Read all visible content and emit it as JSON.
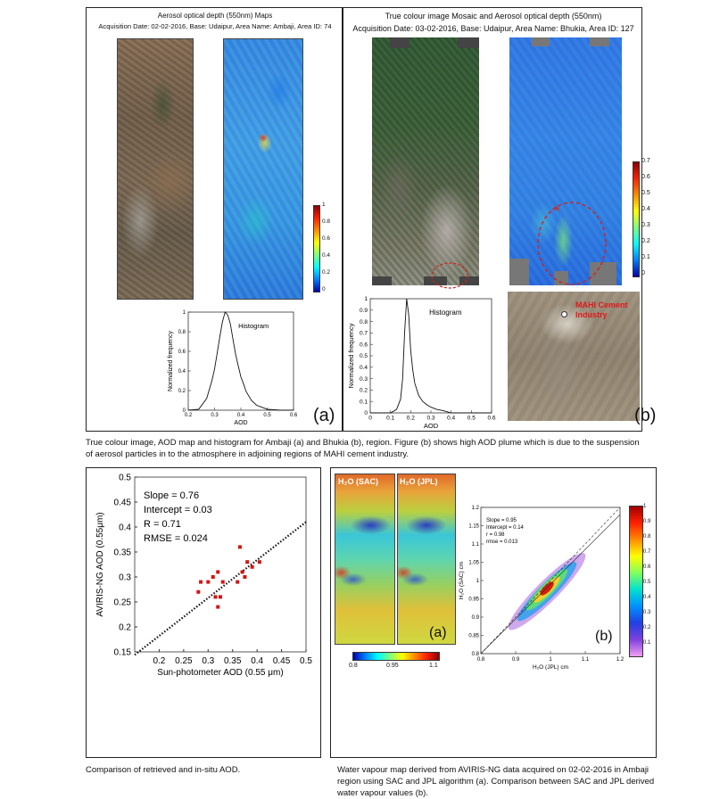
{
  "panel_a": {
    "title": "Aerosol optical depth (550nm) Maps",
    "subtitle": "Acquisition Date: 02-02-2016, Base: Udaipur, Area Name: Ambaji, Area ID: 74",
    "colorbar_ticks": [
      "1",
      "0.8",
      "0.6",
      "0.4",
      "0.2",
      "0"
    ],
    "letter": "(a)"
  },
  "panel_b": {
    "title": "True colour image Mosaic and Aerosol optical depth (550nm)",
    "subtitle": "Acquisition Date: 03-02-2016, Base: Udaipur, Area Name: Bhukia, Area ID: 127",
    "colorbar_ticks": [
      "0.7",
      "0.6",
      "0.5",
      "0.4",
      "0.3",
      "0.2",
      "0.1",
      "0"
    ],
    "inset_label": "MAHI Cement\nIndustry",
    "letter": "(b)"
  },
  "top_caption": "True colour image, AOD map and histogram for Ambaji (a) and Bhukia (b), region. Figure (b) shows high AOD plume which is due to the suspension of aerosol particles in to the atmosphere in adjoining regions of  MAHI cement industry.",
  "scatter_caption": "Comparison of retrieved and in-situ AOD.",
  "water_caption": "Water vapour map derived from AVIRIS-NG data acquired on  02-02-2016 in Ambaji region using SAC and JPL algorithm (a).  Comparison between SAC and JPL derived water vapour values (b).",
  "water_panel": {
    "strip_labels": [
      "H₂O (SAC)",
      "H₂O (JPL)"
    ],
    "colorbar_ticks": [
      "0.8",
      "0.95",
      "1.1"
    ],
    "right_colorbar_ticks": [
      "1",
      "0.9",
      "0.8",
      "0.7",
      "0.6",
      "0.5",
      "0.4",
      "0.3",
      "0.2",
      "0.1"
    ],
    "letter_a": "(a)",
    "letter_b": "(b)"
  },
  "chart_data": [
    {
      "id": "hist_ambaji",
      "type": "line",
      "title": "Histogram",
      "xlabel": "AOD",
      "ylabel": "Normalized frequency",
      "xlim": [
        0.2,
        0.6
      ],
      "ylim": [
        0,
        1
      ],
      "xticks": [
        "0.2",
        "0.3",
        "0.4",
        "0.5",
        "0.6"
      ],
      "yticks": [
        "0",
        "0.2",
        "0.4",
        "0.6",
        "0.8",
        "1"
      ],
      "x": [
        0.2,
        0.24,
        0.27,
        0.29,
        0.3,
        0.31,
        0.32,
        0.33,
        0.34,
        0.35,
        0.36,
        0.37,
        0.38,
        0.39,
        0.4,
        0.41,
        0.42,
        0.44,
        0.46,
        0.48,
        0.5,
        0.55,
        0.6
      ],
      "y": [
        0.0,
        0.01,
        0.12,
        0.3,
        0.42,
        0.58,
        0.75,
        0.9,
        1.0,
        0.97,
        0.88,
        0.72,
        0.57,
        0.45,
        0.34,
        0.27,
        0.19,
        0.1,
        0.05,
        0.03,
        0.01,
        0.0,
        0.0
      ]
    },
    {
      "id": "hist_bhukia",
      "type": "line",
      "title": "Histogram",
      "xlabel": "AOD",
      "ylabel": "Normalized frequency",
      "xlim": [
        0,
        0.6
      ],
      "ylim": [
        0,
        1
      ],
      "xticks": [
        "0",
        "0.1",
        "0.2",
        "0.3",
        "0.4",
        "0.5",
        "0.6"
      ],
      "yticks": [
        "0",
        "0.1",
        "0.2",
        "0.3",
        "0.4",
        "0.5",
        "0.6",
        "0.7",
        "0.8",
        "0.9",
        "1"
      ],
      "x": [
        0,
        0.1,
        0.13,
        0.15,
        0.16,
        0.17,
        0.18,
        0.19,
        0.2,
        0.21,
        0.22,
        0.24,
        0.26,
        0.28,
        0.3,
        0.33,
        0.36,
        0.4,
        0.5,
        0.6
      ],
      "y": [
        0,
        0.0,
        0.03,
        0.12,
        0.3,
        0.7,
        1.0,
        0.86,
        0.55,
        0.38,
        0.26,
        0.15,
        0.1,
        0.07,
        0.05,
        0.03,
        0.02,
        0.0,
        0.0,
        0.0
      ]
    },
    {
      "id": "aod_scatter",
      "type": "scatter",
      "xlabel": "Sun-photometer AOD (0.55 μm)",
      "ylabel": "AVIRIS-NG AOD (0.55μm)",
      "xlim": [
        0.15,
        0.5
      ],
      "ylim": [
        0.15,
        0.5
      ],
      "xticks": [
        "0.2",
        "0.25",
        "0.3",
        "0.35",
        "0.4",
        "0.45",
        "0.5"
      ],
      "yticks": [
        "0.15",
        "0.2",
        "0.25",
        "0.3",
        "0.35",
        "0.4",
        "0.45",
        "0.5"
      ],
      "stats": [
        "Slope = 0.76",
        "Intercept = 0.03",
        "R = 0.71",
        "RMSE = 0.024"
      ],
      "fit": {
        "slope": 0.76,
        "intercept": 0.03
      },
      "points": [
        [
          0.28,
          0.27
        ],
        [
          0.285,
          0.29
        ],
        [
          0.3,
          0.29
        ],
        [
          0.31,
          0.3
        ],
        [
          0.315,
          0.26
        ],
        [
          0.32,
          0.24
        ],
        [
          0.325,
          0.26
        ],
        [
          0.32,
          0.31
        ],
        [
          0.33,
          0.29
        ],
        [
          0.36,
          0.29
        ],
        [
          0.365,
          0.36
        ],
        [
          0.37,
          0.31
        ],
        [
          0.375,
          0.3
        ],
        [
          0.38,
          0.33
        ],
        [
          0.39,
          0.32
        ],
        [
          0.405,
          0.33
        ]
      ]
    },
    {
      "id": "h2o_scatter",
      "type": "scatter",
      "xlabel": "H₂O (JPL) cm",
      "ylabel": "H₂O (SAC) cm",
      "xlim": [
        0.8,
        1.2
      ],
      "ylim": [
        0.8,
        1.2
      ],
      "xticks": [
        "0.8",
        "0.9",
        "1",
        "1.1",
        "1.2"
      ],
      "yticks": [
        "0.8",
        "0.85",
        "0.9",
        "0.95",
        "1",
        "1.05",
        "1.1",
        "1.15",
        "1.2"
      ],
      "stats": [
        "Slope = 0.95",
        "Intercept = 0.14",
        "r = 0.98",
        "rmse = 0.013"
      ]
    }
  ]
}
